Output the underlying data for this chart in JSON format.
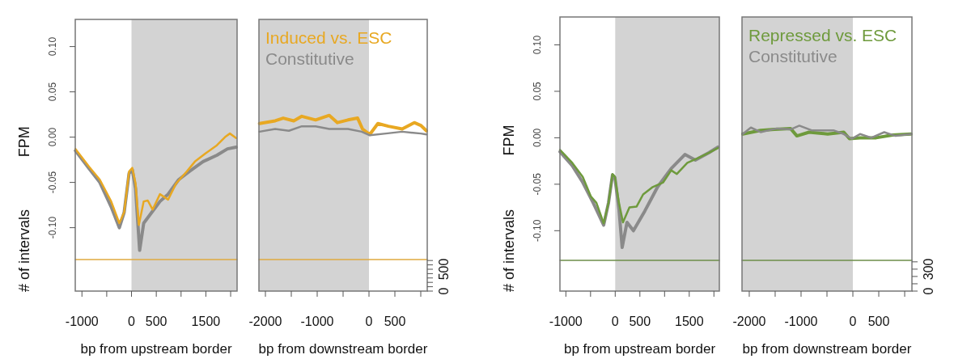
{
  "chart_data": [
    {
      "type": "line",
      "xlabel": "bp from upstream border",
      "ylabel": "FPM",
      "annotations": [
        "# of intervals"
      ],
      "tick_labels": "xy",
      "xlim": [
        -1135,
        2130
      ],
      "xticks": [
        -1000,
        {
          "value": -500,
          "label": null
        },
        0,
        500,
        {
          "value": 1000,
          "label": null
        },
        1500,
        {
          "value": 2000,
          "label": null
        }
      ],
      "ylim": [
        -0.17,
        0.13
      ],
      "yticks": [
        {
          "value": -0.1,
          "label": "-0.10"
        },
        {
          "value": -0.05,
          "label": "-0.05"
        },
        {
          "value": 0,
          "label": "0.00"
        },
        {
          "value": 0.05,
          "label": "0.05"
        },
        {
          "value": 0.1,
          "label": "0.10"
        }
      ],
      "y2lim": [
        0,
        6220
      ],
      "bands": [
        {
          "axis": "x",
          "from": 0,
          "to": 2130,
          "color": "#d3d3d3"
        }
      ],
      "series": [
        {
          "color": "#8a8a8a",
          "x": [
            -1131,
            -852,
            -639,
            -410,
            -246,
            -148,
            -49,
            16,
            82,
            164,
            246,
            410,
            574,
            738,
            951,
            1164,
            1443,
            1722,
            1935,
            2110
          ],
          "values": [
            -0.015,
            -0.035,
            -0.05,
            -0.077,
            -0.1,
            -0.083,
            -0.04,
            -0.036,
            -0.057,
            -0.125,
            -0.095,
            -0.083,
            -0.071,
            -0.063,
            -0.047,
            -0.038,
            -0.027,
            -0.02,
            -0.013,
            -0.011
          ]
        },
        {
          "color": "#e8a822",
          "x": [
            -1131,
            -852,
            -639,
            -410,
            -246,
            -148,
            -49,
            16,
            82,
            148,
            246,
            328,
            426,
            574,
            738,
            902,
            1115,
            1279,
            1492,
            1722,
            1886,
            1985,
            2110
          ],
          "values": [
            -0.013,
            -0.033,
            -0.047,
            -0.071,
            -0.095,
            -0.083,
            -0.038,
            -0.034,
            -0.051,
            -0.097,
            -0.071,
            -0.07,
            -0.08,
            -0.063,
            -0.069,
            -0.051,
            -0.038,
            -0.027,
            -0.018,
            -0.009,
            0,
            0.004,
            -0.001
          ]
        },
        {
          "axis": "y2",
          "color": "#e0aa40",
          "x": [
            -1135,
            2130
          ],
          "values": [
            720,
            720
          ]
        }
      ]
    },
    {
      "type": "line",
      "xlabel": "bp from downstream border",
      "tick_labels": "xy2",
      "legend": "top left",
      "xlim": [
        -2125,
        1125
      ],
      "xticks": [
        -2000,
        {
          "value": -1500,
          "label": null
        },
        -1000,
        {
          "value": -500,
          "label": null
        },
        0,
        500,
        {
          "value": 1000,
          "label": null
        }
      ],
      "ylim": [
        -0.17,
        0.13
      ],
      "y2lim": [
        0,
        6220
      ],
      "y2ticks": [
        0,
        {
          "value": 100,
          "label": null
        },
        {
          "value": 200,
          "label": null
        },
        {
          "value": 300,
          "label": null
        },
        {
          "value": 400,
          "label": null
        },
        500,
        {
          "value": 600,
          "label": null
        },
        {
          "value": 700,
          "label": null
        }
      ],
      "bands": [
        {
          "axis": "x",
          "from": -2125,
          "to": 0,
          "color": "#d3d3d3"
        }
      ],
      "series": [
        {
          "name": "Induced vs. ESC",
          "color": "#e8a822",
          "x": [
            -2114,
            -1812,
            -1656,
            -1453,
            -1297,
            -1031,
            -766,
            -609,
            -406,
            -219,
            -125,
            16,
            172,
            375,
            641,
            875,
            1000,
            1109
          ],
          "values": [
            0.015,
            0.018,
            0.021,
            0.018,
            0.023,
            0.019,
            0.024,
            0.016,
            0.019,
            0.021,
            0.009,
            0.003,
            0.015,
            0.012,
            0.009,
            0.016,
            0.013,
            0.007
          ]
        },
        {
          "name": "Constitutive",
          "color": "#8a8a8a",
          "x": [
            -2114,
            -1812,
            -1547,
            -1297,
            -1031,
            -766,
            -406,
            -141,
            16,
            328,
            641,
            1000,
            1109
          ],
          "values": [
            0.006,
            0.009,
            0.007,
            0.012,
            0.012,
            0.009,
            0.009,
            0.006,
            0.002,
            0.004,
            0.006,
            0.004,
            0.003
          ]
        },
        {
          "axis": "y2",
          "color": "#e0aa40",
          "x": [
            -2125,
            1125
          ],
          "values": [
            720,
            720
          ]
        }
      ]
    },
    {
      "type": "line",
      "xlabel": "bp from upstream border",
      "ylabel": "FPM",
      "annotations": [
        "# of intervals"
      ],
      "tick_labels": "xy",
      "xlim": [
        -1120,
        2110
      ],
      "xticks": [
        -1000,
        {
          "value": -500,
          "label": null
        },
        0,
        500,
        {
          "value": 1000,
          "label": null
        },
        1500,
        {
          "value": 2000,
          "label": null
        }
      ],
      "ylim": [
        -0.165,
        0.13
      ],
      "yticks": [
        {
          "value": -0.1,
          "label": "-0.10"
        },
        {
          "value": -0.05,
          "label": "-0.05"
        },
        {
          "value": 0,
          "label": "0.00"
        },
        {
          "value": 0.05,
          "label": "0.05"
        },
        {
          "value": 0.1,
          "label": "0.10"
        }
      ],
      "y2lim": [
        0,
        3750
      ],
      "bands": [
        {
          "axis": "x",
          "from": 0,
          "to": 2110,
          "color": "#d3d3d3"
        }
      ],
      "series": [
        {
          "color": "#8a8a8a",
          "x": [
            -1119,
            -870,
            -658,
            -446,
            -234,
            -136,
            -55,
            -6,
            76,
            141,
            239,
            369,
            598,
            858,
            1135,
            1412,
            1624,
            1901,
            2080
          ],
          "values": [
            -0.015,
            -0.03,
            -0.048,
            -0.07,
            -0.094,
            -0.07,
            -0.04,
            -0.043,
            -0.077,
            -0.118,
            -0.091,
            -0.1,
            -0.079,
            -0.053,
            -0.033,
            -0.018,
            -0.024,
            -0.016,
            -0.01
          ]
        },
        {
          "color": "#6e9a3c",
          "x": [
            -1119,
            -870,
            -658,
            -495,
            -381,
            -234,
            -136,
            -55,
            -6,
            76,
            157,
            288,
            434,
            565,
            760,
            972,
            1135,
            1249,
            1461,
            1673,
            1901,
            2080
          ],
          "values": [
            -0.013,
            -0.027,
            -0.042,
            -0.063,
            -0.07,
            -0.092,
            -0.07,
            -0.039,
            -0.042,
            -0.07,
            -0.091,
            -0.075,
            -0.074,
            -0.061,
            -0.053,
            -0.048,
            -0.035,
            -0.039,
            -0.027,
            -0.022,
            -0.016,
            -0.011
          ]
        },
        {
          "axis": "y2",
          "color": "#6e8f4a",
          "x": [
            -1120,
            2110
          ],
          "values": [
            420,
            420
          ]
        }
      ]
    },
    {
      "type": "line",
      "xlabel": "bp from downstream border",
      "tick_labels": "xy2",
      "legend": "top left",
      "xlim": [
        -2140,
        1140
      ],
      "xticks": [
        -2000,
        {
          "value": -1500,
          "label": null
        },
        -1000,
        {
          "value": -500,
          "label": null
        },
        0,
        500,
        {
          "value": 1000,
          "label": null
        }
      ],
      "ylim": [
        -0.165,
        0.13
      ],
      "y2lim": [
        0,
        3750
      ],
      "y2ticks": [
        0,
        {
          "value": 100,
          "label": null
        },
        {
          "value": 200,
          "label": null
        },
        300,
        {
          "value": 400,
          "label": null
        }
      ],
      "bands": [
        {
          "axis": "x",
          "from": -2140,
          "to": 0,
          "color": "#d3d3d3"
        }
      ],
      "series": [
        {
          "name": "Repressed vs. ESC",
          "color": "#6e9a3c",
          "x": [
            -2125,
            -1781,
            -1516,
            -1204,
            -1080,
            -846,
            -487,
            -175,
            -66,
            138,
            450,
            763,
            1122
          ],
          "values": [
            0.004,
            0.008,
            0.009,
            0.01,
            0.002,
            0.006,
            0.004,
            0.006,
            -0.001,
            0,
            0,
            0.003,
            0.004
          ]
        },
        {
          "name": "Constitutive",
          "color": "#8a8a8a",
          "x": [
            -2125,
            -1969,
            -1781,
            -1470,
            -1204,
            -1033,
            -798,
            -376,
            -175,
            -19,
            138,
            356,
            605,
            825,
            1122
          ],
          "values": [
            0.004,
            0.011,
            0.006,
            0.01,
            0.009,
            0.013,
            0.008,
            0.008,
            0.004,
            -0.001,
            0.004,
            0,
            0.006,
            0.002,
            0.004
          ]
        },
        {
          "axis": "y2",
          "color": "#6e8f4a",
          "x": [
            -2140,
            1140
          ],
          "values": [
            420,
            420
          ]
        }
      ]
    }
  ]
}
